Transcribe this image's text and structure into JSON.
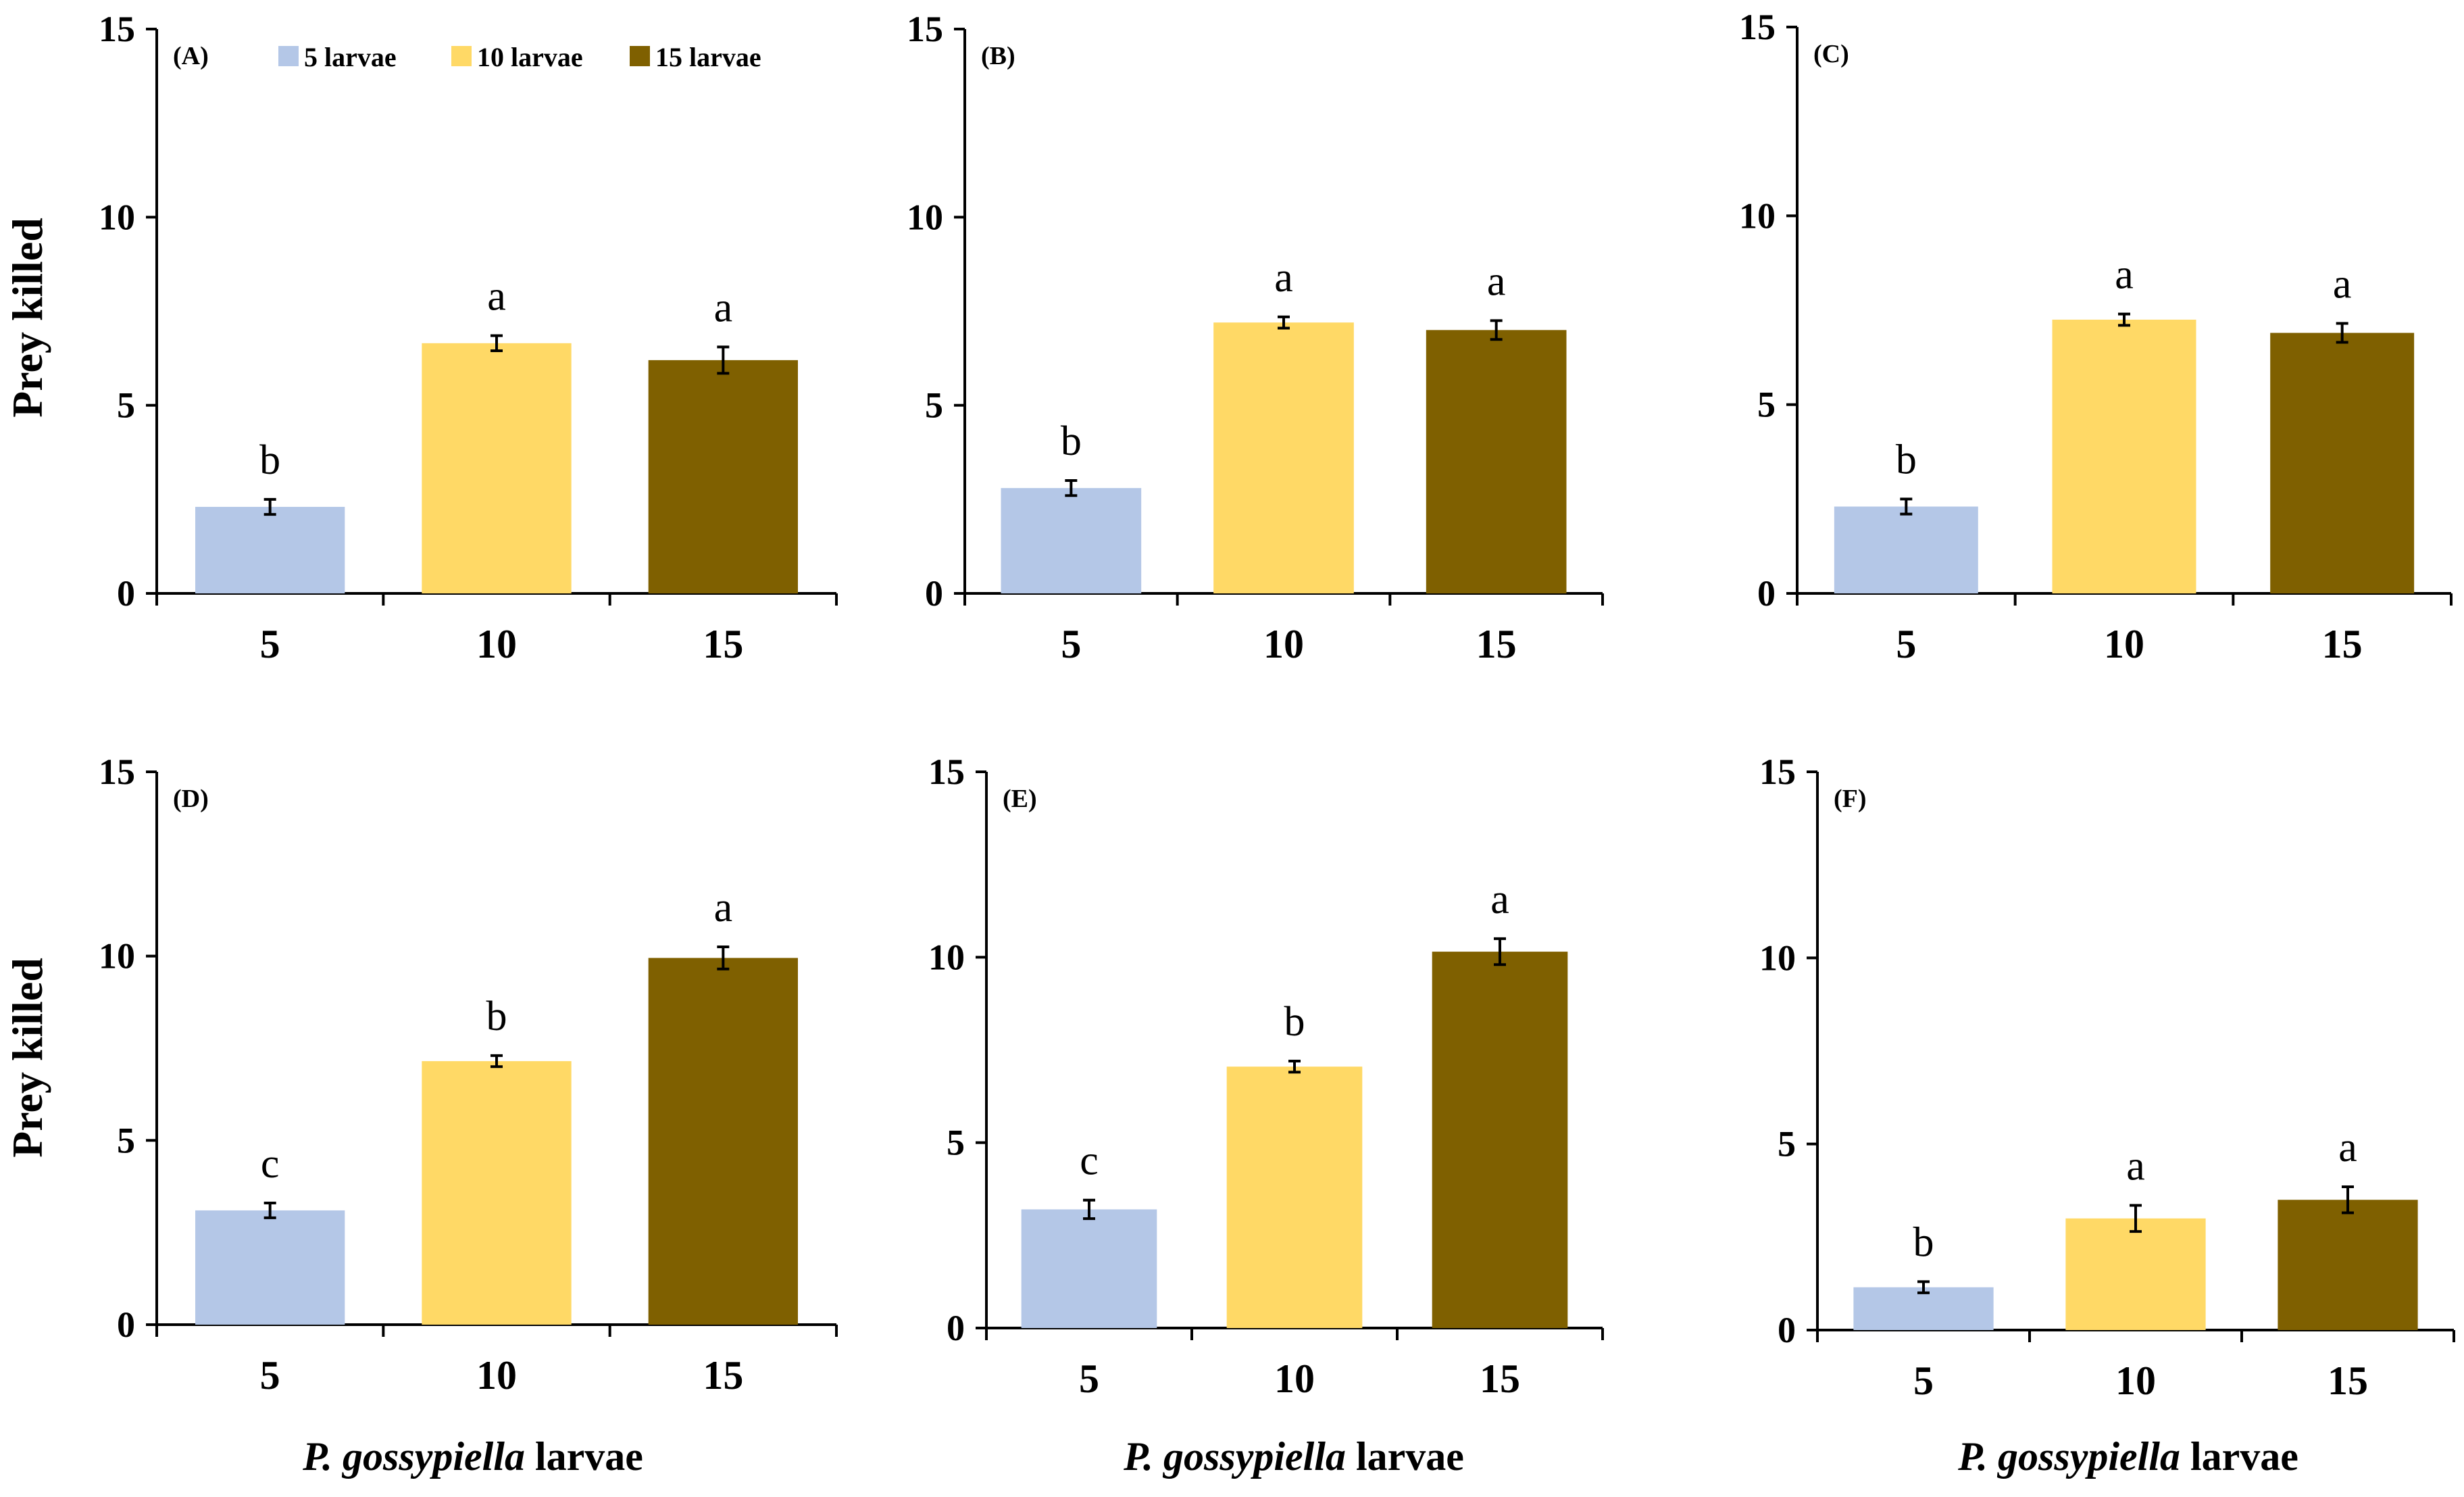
{
  "colors": {
    "series": [
      "#b4c7e7",
      "#ffd966",
      "#7f6000"
    ],
    "axis": "#000000",
    "background": "#ffffff"
  },
  "legend": {
    "placement": "top",
    "entries": [
      "5 larvae",
      "10 larvae",
      "15 larvae"
    ]
  },
  "y_axis_label": "Prey killed",
  "x_axis_label": {
    "species": "P. gossypiella",
    "word": "larvae"
  },
  "chart_data": [
    {
      "type": "bar",
      "panel": "(A)",
      "categories": [
        "5",
        "10",
        "15"
      ],
      "series": [
        {
          "name": "5 larvae"
        },
        {
          "name": "10 larvae"
        },
        {
          "name": "15 larvae"
        }
      ],
      "values": [
        2.3,
        6.65,
        6.2
      ],
      "errors": [
        0.2,
        0.2,
        0.35
      ],
      "letters": [
        "b",
        "a",
        "a"
      ],
      "ylabel": "Prey killed",
      "ylim": [
        0,
        15
      ],
      "yticks": [
        0,
        5,
        10,
        15
      ],
      "grid": false
    },
    {
      "type": "bar",
      "panel": "(B)",
      "categories": [
        "5",
        "10",
        "15"
      ],
      "series": [
        {
          "name": "5 larvae"
        },
        {
          "name": "10 larvae"
        },
        {
          "name": "15 larvae"
        }
      ],
      "values": [
        2.8,
        7.2,
        7.0
      ],
      "errors": [
        0.2,
        0.15,
        0.25
      ],
      "letters": [
        "b",
        "a",
        "a"
      ],
      "ylim": [
        0,
        15
      ],
      "yticks": [
        0,
        5,
        10,
        15
      ],
      "grid": false
    },
    {
      "type": "bar",
      "panel": "(C)",
      "categories": [
        "5",
        "10",
        "15"
      ],
      "series": [
        {
          "name": "5 larvae"
        },
        {
          "name": "10 larvae"
        },
        {
          "name": "15 larvae"
        }
      ],
      "values": [
        2.3,
        7.25,
        6.9
      ],
      "errors": [
        0.2,
        0.15,
        0.25
      ],
      "letters": [
        "b",
        "a",
        "a"
      ],
      "ylim": [
        0,
        15
      ],
      "yticks": [
        0,
        5,
        10,
        15
      ],
      "grid": false
    },
    {
      "type": "bar",
      "panel": "(D)",
      "categories": [
        "5",
        "10",
        "15"
      ],
      "series": [
        {
          "name": "5 larvae"
        },
        {
          "name": "10 larvae"
        },
        {
          "name": "15 larvae"
        }
      ],
      "values": [
        3.1,
        7.15,
        9.95
      ],
      "errors": [
        0.2,
        0.15,
        0.3
      ],
      "letters": [
        "c",
        "b",
        "a"
      ],
      "ylabel": "Prey killed",
      "ylim": [
        0,
        15
      ],
      "yticks": [
        0,
        5,
        10,
        15
      ],
      "grid": false
    },
    {
      "type": "bar",
      "panel": "(E)",
      "categories": [
        "5",
        "10",
        "15"
      ],
      "series": [
        {
          "name": "5 larvae"
        },
        {
          "name": "10 larvae"
        },
        {
          "name": "15 larvae"
        }
      ],
      "values": [
        3.2,
        7.05,
        10.15
      ],
      "errors": [
        0.25,
        0.15,
        0.35
      ],
      "letters": [
        "c",
        "b",
        "a"
      ],
      "ylim": [
        0,
        15
      ],
      "yticks": [
        0,
        5,
        10,
        15
      ],
      "grid": false
    },
    {
      "type": "bar",
      "panel": "(F)",
      "categories": [
        "5",
        "10",
        "15"
      ],
      "series": [
        {
          "name": "5 larvae"
        },
        {
          "name": "10 larvae"
        },
        {
          "name": "15 larvae"
        }
      ],
      "values": [
        1.15,
        3.0,
        3.5
      ],
      "errors": [
        0.15,
        0.35,
        0.35
      ],
      "letters": [
        "b",
        "a",
        "a"
      ],
      "ylim": [
        0,
        15
      ],
      "yticks": [
        0,
        5,
        10,
        15
      ],
      "grid": false
    }
  ]
}
